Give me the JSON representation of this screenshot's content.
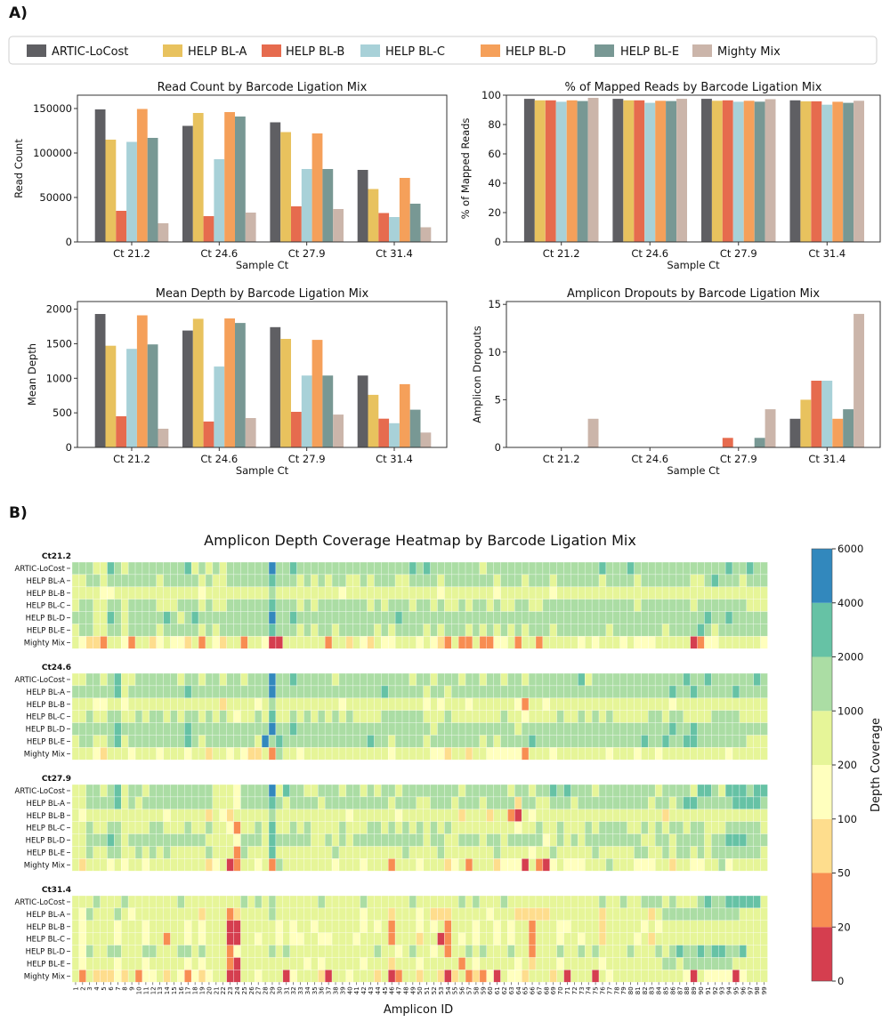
{
  "panel_labels": {
    "a": "A)",
    "b": "B)"
  },
  "legend": {
    "items": [
      {
        "label": "ARTIC-LoCost",
        "color": "#5f5f63"
      },
      {
        "label": "HELP BL-A",
        "color": "#e8c25e"
      },
      {
        "label": "HELP BL-B",
        "color": "#e66b4e"
      },
      {
        "label": "HELP BL-C",
        "color": "#a8d1d8"
      },
      {
        "label": "HELP BL-D",
        "color": "#f5a05a"
      },
      {
        "label": "HELP BL-E",
        "color": "#789894"
      },
      {
        "label": "Mighty Mix",
        "color": "#cbb5aa"
      }
    ]
  },
  "chart_data": [
    {
      "type": "bar",
      "title": "Read Count by Barcode Ligation Mix",
      "xlabel": "Sample Ct",
      "ylabel": "Read Count",
      "categories": [
        "Ct 21.2",
        "Ct 24.6",
        "Ct 27.9",
        "Ct 31.4"
      ],
      "ylim": [
        0,
        165000
      ],
      "yticks": [
        "0",
        "50000",
        "100000",
        "150000"
      ],
      "ytick_values": [
        0,
        50000,
        100000,
        150000
      ],
      "series": [
        {
          "name": "ARTIC-LoCost",
          "values": [
            149000,
            130500,
            134500,
            81000
          ]
        },
        {
          "name": "HELP BL-A",
          "values": [
            115000,
            145000,
            123500,
            59500
          ]
        },
        {
          "name": "HELP BL-B",
          "values": [
            35000,
            29000,
            40000,
            32500
          ]
        },
        {
          "name": "HELP BL-C",
          "values": [
            112500,
            93000,
            82000,
            28000
          ]
        },
        {
          "name": "HELP BL-D",
          "values": [
            149500,
            146000,
            122000,
            72000
          ]
        },
        {
          "name": "HELP BL-E",
          "values": [
            117000,
            141000,
            82000,
            43000
          ]
        },
        {
          "name": "Mighty Mix",
          "values": [
            21000,
            33000,
            37000,
            16500
          ]
        }
      ]
    },
    {
      "type": "bar",
      "title": "% of Mapped Reads by Barcode Ligation Mix",
      "xlabel": "Sample Ct",
      "ylabel": "% of Mapped Reads",
      "categories": [
        "Ct 21.2",
        "Ct 24.6",
        "Ct 27.9",
        "Ct 31.4"
      ],
      "ylim": [
        0,
        100
      ],
      "yticks": [
        "0",
        "20",
        "40",
        "60",
        "80",
        "100"
      ],
      "ytick_values": [
        0,
        20,
        40,
        60,
        80,
        100
      ],
      "series": [
        {
          "name": "ARTIC-LoCost",
          "values": [
            97.5,
            97.5,
            97.5,
            96.5
          ]
        },
        {
          "name": "HELP BL-A",
          "values": [
            96.5,
            96.5,
            96.2,
            95.8
          ]
        },
        {
          "name": "HELP BL-B",
          "values": [
            96.5,
            96.5,
            96.5,
            95.8
          ]
        },
        {
          "name": "HELP BL-C",
          "values": [
            95.5,
            94.8,
            95.5,
            93.5
          ]
        },
        {
          "name": "HELP BL-D",
          "values": [
            96.5,
            96.2,
            96.2,
            95.5
          ]
        },
        {
          "name": "HELP BL-E",
          "values": [
            96.0,
            96.0,
            95.6,
            94.8
          ]
        },
        {
          "name": "Mighty Mix",
          "values": [
            98.2,
            97.5,
            97.3,
            96.2
          ]
        }
      ]
    },
    {
      "type": "bar",
      "title": "Mean Depth by Barcode Ligation Mix",
      "xlabel": "Sample Ct",
      "ylabel": "Mean Depth",
      "categories": [
        "Ct 21.2",
        "Ct 24.6",
        "Ct 27.9",
        "Ct 31.4"
      ],
      "ylim": [
        0,
        2110
      ],
      "yticks": [
        "0",
        "500",
        "1000",
        "1500",
        "2000"
      ],
      "ytick_values": [
        0,
        500,
        1000,
        1500,
        2000
      ],
      "series": [
        {
          "name": "ARTIC-LoCost",
          "values": [
            1930,
            1690,
            1740,
            1040
          ]
        },
        {
          "name": "HELP BL-A",
          "values": [
            1470,
            1860,
            1570,
            760
          ]
        },
        {
          "name": "HELP BL-B",
          "values": [
            450,
            375,
            515,
            415
          ]
        },
        {
          "name": "HELP BL-C",
          "values": [
            1425,
            1170,
            1040,
            350
          ]
        },
        {
          "name": "HELP BL-D",
          "values": [
            1910,
            1865,
            1555,
            915
          ]
        },
        {
          "name": "HELP BL-E",
          "values": [
            1490,
            1800,
            1040,
            545
          ]
        },
        {
          "name": "Mighty Mix",
          "values": [
            270,
            425,
            475,
            215
          ]
        }
      ]
    },
    {
      "type": "bar",
      "title": "Amplicon Dropouts by Barcode Ligation Mix",
      "xlabel": "Sample Ct",
      "ylabel": "Amplicon Dropouts",
      "categories": [
        "Ct 21.2",
        "Ct 24.6",
        "Ct 27.9",
        "Ct 31.4"
      ],
      "ylim": [
        0,
        15.3
      ],
      "yticks": [
        "0",
        "5",
        "10",
        "15"
      ],
      "ytick_values": [
        0,
        5,
        10,
        15
      ],
      "series": [
        {
          "name": "ARTIC-LoCost",
          "values": [
            0,
            0,
            0,
            3
          ]
        },
        {
          "name": "HELP BL-A",
          "values": [
            0,
            0,
            0,
            5
          ]
        },
        {
          "name": "HELP BL-B",
          "values": [
            0,
            0,
            1,
            7
          ]
        },
        {
          "name": "HELP BL-C",
          "values": [
            0,
            0,
            0,
            7
          ]
        },
        {
          "name": "HELP BL-D",
          "values": [
            0,
            0,
            0,
            3
          ]
        },
        {
          "name": "HELP BL-E",
          "values": [
            0,
            0,
            1,
            4
          ]
        },
        {
          "name": "Mighty Mix",
          "values": [
            3,
            0,
            4,
            14
          ]
        }
      ]
    },
    {
      "type": "heatmap",
      "title": "Amplicon Depth Coverage Heatmap by Barcode Ligation Mix",
      "xlabel": "Amplicon ID",
      "colorbar_label": "Depth Coverage",
      "colorbar_ticks": [
        "0",
        "20",
        "50",
        "100",
        "200",
        "1000",
        "2000",
        "4000",
        "6000"
      ],
      "bins": [
        {
          "range": "0-20",
          "color": "#d53e4f"
        },
        {
          "range": "20-50",
          "color": "#f88d52"
        },
        {
          "range": "50-100",
          "color": "#fedd8d"
        },
        {
          "range": "100-200",
          "color": "#ffffbe"
        },
        {
          "range": "200-1000",
          "color": "#e6f598"
        },
        {
          "range": "1000-2000",
          "color": "#abdda4"
        },
        {
          "range": "2000-4000",
          "color": "#66c2a5"
        },
        {
          "range": "4000-6000",
          "color": "#3288bd"
        }
      ],
      "amplicons": [
        1,
        2,
        3,
        4,
        5,
        6,
        7,
        8,
        9,
        10,
        11,
        12,
        13,
        14,
        15,
        16,
        17,
        18,
        19,
        20,
        21,
        22,
        23,
        24,
        25,
        26,
        27,
        28,
        29,
        30,
        31,
        32,
        33,
        34,
        35,
        36,
        37,
        38,
        39,
        40,
        41,
        42,
        43,
        44,
        45,
        46,
        47,
        48,
        49,
        50,
        51,
        52,
        53,
        54,
        55,
        56,
        57,
        58,
        59,
        60,
        61,
        62,
        63,
        64,
        65,
        66,
        67,
        68,
        69,
        70,
        71,
        72,
        73,
        74,
        75,
        76,
        77,
        78,
        79,
        80,
        81,
        82,
        83,
        84,
        85,
        86,
        87,
        88,
        89,
        90,
        91,
        92,
        93,
        94,
        95,
        96,
        97,
        98,
        99
      ],
      "panels": [
        {
          "label": "Ct21.2",
          "rows": [
            {
              "name": "ARTIC-LoCost",
              "bins": "555446545555555564545455555575565555555555555555656555555545555555555555555655565555555555555655655546655 55"
            },
            {
              "name": "HELP BL-A",
              "bins": "445545555555455555454455555565554545455445455544555545555555455545554555555455554555555544565554555555"
            },
            {
              "name": "HELP BL-B",
              "bins": "444433444444444444344444444454444444443444444444444434444444344444443444444444444444444444444444444444"
            },
            {
              "name": "HELP BL-C",
              "bins": "455445545555444555454455555565554545555555454555455454454554544554455555555555554555555545555555"
            },
            {
              "name": "HELP BL-D",
              "bins": "555446545555565456555555555575565555555555555565555555555555555555555555555555555555555555655655555"
            },
            {
              "name": "HELP BL-E",
              "bins": "455445545555455555454555555565554545545555545455554545554545454545554555555545555555455556545555555"
            },
            {
              "name": "Mighty Mix",
              "bins": "432214431442343324143244144300444444144243243344434321411411334144144444343444343334444401334444443"
            }
          ]
        },
        {
          "label": "Ct24.6",
          "rows": [
            {
              "name": "ARTIC-LoCost",
              "bins": "445545644555555455455455455575565555545555555555455455545545545545555555645555555555555655655555565555"
            },
            {
              "name": "HELP BL-A",
              "bins": "555555645555555565555555555575555555555555556555554554555555555555555555555555555555565565555565555"
            },
            {
              "name": "HELP BL-B",
              "bins": "444334434444444444444244443454444444443444444444443434443444444314434444444444444444434444444444444"
            },
            {
              "name": "HELP BL-C",
              "bins": "445445544545545455454543445464454545454544445555554445444444454434444544545454444455455444455554444"
            },
            {
              "name": "HELP BL-D",
              "bins": "555555655555555565555555555575565555555555555555555455555555555455555555555555555555565565555555555"
            },
            {
              "name": "HELP BL-E",
              "bins": "455445645555555565455555554756555555555555655455554555555545455556555555555555555655655665555555"
            },
            {
              "name": "Mighty Mix",
              "bins": "444324443444344434424434322415443444444444444344444332442443333314443444444434443443444444444344444"
            }
          ]
        },
        {
          "label": "Ct27.9",
          "rows": [
            {
              "name": "ARTIC-LoCost",
              "bins": "445545645545555555554443555574655445554554545545555555545555554554556565554555555554555546654666566 5"
            },
            {
              "name": "HELP BL-A",
              "bins": "445555645455555555554443555565455554555555555455544555455545555255445554555555555545545665555566665"
            },
            {
              "name": "HELP BL-B",
              "bins": "434444444444434444424324444454444444444344444434444444424442441043444444444444444444244444444444444"
            },
            {
              "name": "HELP BL-C",
              "bins": "445445544445544454454431445464454544445444554545454545444444444344544544454555544545455455444555554"
            },
            {
              "name": "HELP BL-D",
              "bins": "445556545555555555544443555465555544545455555555554554455545545555534545455555555445545555455666555"
            },
            {
              "name": "HELP BL-E",
              "bins": "445445544545454444454441544464444444454444444445444454444444544443445444445444445544545545455555554"
            },
            {
              "name": "Mighty Mix",
              "bins": "424443434434444444423401443415444444434443444144434442341444233304103433344454443334424433445344444"
            }
          ]
        },
        {
          "label": "Ct31.4",
          "rows": [
            {
              "name": "ARTIC-LoCost",
              "bins": "444544454444444544444444545454444445444445444444544444454544454444444444444544544555454445655666664 44"
            },
            {
              "name": "HELP BL-A",
              "bins": "435444543444444444244412444454444444444443444244434222444443444222224444444244444424555555555554444"
            },
            {
              "name": "HELP BL-B",
              "bins": "434444344434444434344400444443434434444443434144434341444344343441444334444244444343444444444444444"
            },
            {
              "name": "HELP BL-C",
              "bins": "434444344434414434344400443443433443344434444144424401434344343441444344344244443424444444444444444"
            },
            {
              "name": "HELP BL-D",
              "bins": "435445544455444554544413444454544444444444454434544341445454445441444544545444454445456556566556444"
            },
            {
              "name": "HELP BL-E",
              "bins": "434444344434444434344410444444444343444443444244434444414344444342444344444344444444554555555544444"
            },
            {
              "name": "Mighty Mix",
              "bins": "414222324133424313234400443444034442044344424014424420241213043324442404440434444444444304333303444"
            }
          ]
        }
      ]
    }
  ]
}
